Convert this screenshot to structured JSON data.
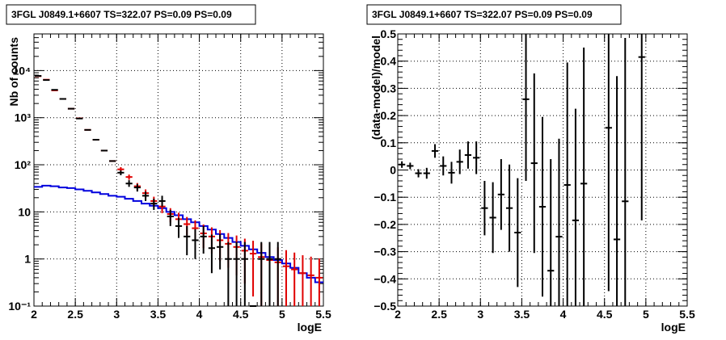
{
  "chart_data": [
    {
      "type": "line",
      "title": "3FGL J0849.1+6607 TS=322.07 PS=0.09 PS=0.09",
      "xlabel": "logE",
      "ylabel": "Nb of counts",
      "xlim": [
        2,
        5.5
      ],
      "ylim": [
        0.1,
        60000
      ],
      "yscale": "log",
      "grid": true,
      "xticks": [
        "2",
        "2.5",
        "3",
        "3.5",
        "4",
        "4.5",
        "5",
        "5.5"
      ],
      "yticks": [
        {
          "value": 0.1,
          "label": "10⁻¹"
        },
        {
          "value": 1,
          "label": "1"
        },
        {
          "value": 10,
          "label": "10"
        },
        {
          "value": 100,
          "label": "10²"
        },
        {
          "value": 1000,
          "label": "10³"
        },
        {
          "value": 10000,
          "label": "10⁴"
        }
      ],
      "bin_width": 0.1,
      "x": [
        2.05,
        2.15,
        2.25,
        2.35,
        2.45,
        2.55,
        2.65,
        2.75,
        2.85,
        2.95,
        3.05,
        3.15,
        3.25,
        3.35,
        3.45,
        3.55,
        3.65,
        3.75,
        3.85,
        3.95,
        4.05,
        4.15,
        4.25,
        4.35,
        4.45,
        4.55,
        4.65,
        4.75,
        4.85,
        4.95,
        5.05,
        5.15,
        5.25,
        5.35,
        5.45
      ],
      "series": [
        {
          "role": "data",
          "color": "#000000",
          "values": [
            7700,
            6300,
            3900,
            2500,
            1550,
            960,
            550,
            340,
            200,
            120,
            68,
            40,
            33,
            22,
            15,
            17,
            8,
            5,
            3,
            2.5,
            3,
            1.7,
            1.8,
            1,
            1,
            1,
            0.1,
            1,
            1,
            1,
            null,
            null,
            null,
            null,
            null
          ],
          "err_low": [
            0,
            0,
            0,
            0,
            0,
            0,
            0,
            0,
            0,
            0,
            8,
            6,
            6,
            5,
            4,
            4,
            3,
            2.2,
            1.8,
            1.5,
            1.7,
            1.2,
            1.2,
            0.9,
            0.9,
            0.9,
            0,
            0.9,
            0.9,
            0.9,
            null,
            null,
            null,
            null,
            null
          ],
          "err_high": [
            0,
            0,
            0,
            0,
            0,
            0,
            0,
            0,
            0,
            0,
            8,
            7,
            6,
            5,
            4,
            5,
            3,
            2.5,
            2,
            1.8,
            2,
            1.6,
            1.6,
            1.3,
            1.3,
            1.3,
            0,
            1.3,
            1.3,
            1.3,
            null,
            null,
            null,
            null,
            null
          ]
        },
        {
          "role": "model-total",
          "color": "#e00000",
          "values": [
            7600,
            6400,
            3800,
            2500,
            1550,
            970,
            550,
            340,
            200,
            120,
            80,
            55,
            35,
            25,
            17,
            13,
            9,
            7,
            5.5,
            4.5,
            3.5,
            3,
            2.5,
            2.1,
            1.8,
            1.5,
            1.3,
            1.1,
            0.95,
            0.85,
            0.7,
            0.6,
            0.5,
            0.45,
            0.4
          ],
          "err_low": [
            0,
            0,
            0,
            0,
            0,
            0,
            0,
            0,
            0,
            0,
            8,
            7,
            6,
            5,
            4,
            3.6,
            3,
            2.6,
            2.3,
            2.1,
            1.8,
            1.7,
            1.6,
            1.45,
            1.35,
            1.2,
            1.14,
            1.05,
            0.95,
            0.85,
            0.6,
            0.5,
            0.4,
            0.35,
            0.3
          ],
          "err_high": [
            0,
            0,
            0,
            0,
            0,
            0,
            0,
            0,
            0,
            0,
            9,
            7,
            6,
            5,
            4,
            3.6,
            3,
            2.6,
            2.3,
            2.1,
            1.9,
            1.7,
            1.6,
            1.45,
            1.35,
            1.2,
            1.14,
            1.05,
            0.97,
            0.92,
            0.84,
            0.77,
            0.7,
            0.67,
            0.63
          ]
        },
        {
          "role": "model-source",
          "color": "#0000dd",
          "step": true,
          "values": [
            34,
            36,
            35,
            33,
            32,
            30,
            28,
            26,
            24,
            22,
            21,
            19,
            17,
            15,
            13.5,
            12,
            10,
            8.5,
            7,
            6,
            5,
            4.2,
            3.4,
            2.8,
            2.3,
            1.9,
            1.6,
            1.35,
            1.1,
            0.95,
            0.8,
            0.65,
            0.5,
            0.4,
            0.32
          ]
        }
      ]
    },
    {
      "type": "scatter",
      "title": "3FGL J0849.1+6607 TS=322.07 PS=0.09 PS=0.09",
      "xlabel": "logE",
      "ylabel": "(data-model)/model",
      "xlim": [
        2,
        5.5
      ],
      "ylim": [
        -0.5,
        0.5
      ],
      "grid": true,
      "xticks": [
        "2",
        "2.5",
        "3",
        "3.5",
        "4",
        "4.5",
        "5",
        "5.5"
      ],
      "yticks": [
        "−0.5",
        "−0.4",
        "−0.3",
        "−0.2",
        "−0.1",
        "0",
        "0.1",
        "0.2",
        "0.3",
        "0.4",
        "0.5"
      ],
      "bin_width": 0.1,
      "x": [
        2.05,
        2.15,
        2.25,
        2.35,
        2.45,
        2.55,
        2.65,
        2.75,
        2.85,
        2.95,
        3.05,
        3.15,
        3.25,
        3.35,
        3.45,
        3.55,
        3.65,
        3.75,
        3.85,
        3.95,
        4.05,
        4.15,
        4.25,
        4.55,
        4.65,
        4.75,
        4.95
      ],
      "values": [
        0.02,
        0.015,
        -0.012,
        -0.012,
        0.07,
        0.015,
        -0.01,
        0.03,
        0.055,
        0.045,
        -0.14,
        -0.175,
        -0.09,
        -0.14,
        -0.23,
        0.26,
        0.025,
        -0.135,
        -0.37,
        -0.245,
        -0.055,
        -0.185,
        -0.05,
        0.155,
        -0.255,
        -0.115,
        0.415
      ],
      "err": [
        0.012,
        0.012,
        0.015,
        0.02,
        0.025,
        0.035,
        0.04,
        0.045,
        0.05,
        0.06,
        0.1,
        0.13,
        0.13,
        0.16,
        0.2,
        0.3,
        0.33,
        0.33,
        0.41,
        0.36,
        0.45,
        0.41,
        0.5,
        0.6,
        0.6,
        0.6,
        0.6
      ]
    }
  ]
}
